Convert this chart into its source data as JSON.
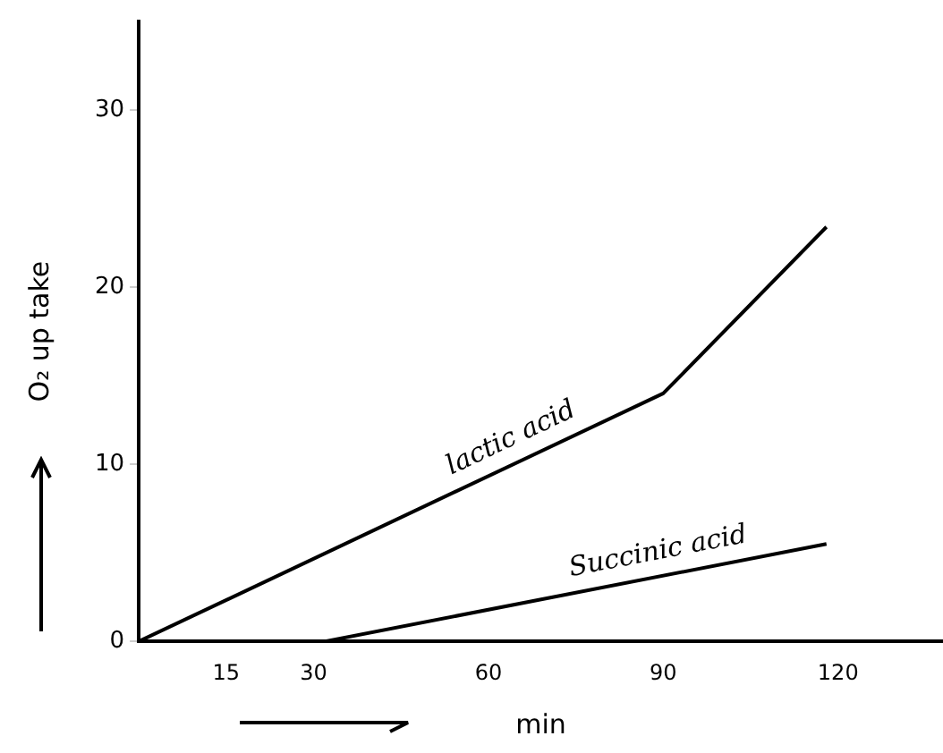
{
  "chart_data": {
    "type": "line",
    "xlabel": "min",
    "ylabel": "O₂ up take",
    "xlim": [
      0,
      138
    ],
    "ylim": [
      0,
      35
    ],
    "xticks": [
      15,
      30,
      60,
      90,
      120
    ],
    "yticks": [
      0,
      10,
      20,
      30
    ],
    "grid": false,
    "legend": false,
    "marker": "none",
    "line_style": "solid",
    "series": [
      {
        "name": "lactic acid",
        "color": "#000000",
        "x": [
          0,
          90,
          118
        ],
        "values": [
          0,
          14,
          23.4
        ]
      },
      {
        "name": "Succinic acid",
        "color": "#000000",
        "x": [
          32,
          118
        ],
        "values": [
          0,
          5.5
        ]
      }
    ]
  }
}
